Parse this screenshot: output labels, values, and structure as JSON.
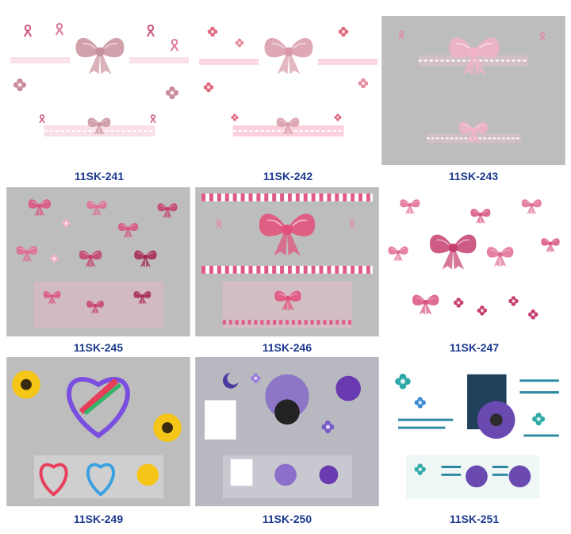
{
  "products": [
    {
      "code": "11SK-241"
    },
    {
      "code": "11SK-242"
    },
    {
      "code": "11SK-243"
    },
    {
      "code": "11SK-245"
    },
    {
      "code": "11SK-246"
    },
    {
      "code": "11SK-247"
    },
    {
      "code": "11SK-249"
    },
    {
      "code": "11SK-250"
    },
    {
      "code": "11SK-251"
    }
  ]
}
